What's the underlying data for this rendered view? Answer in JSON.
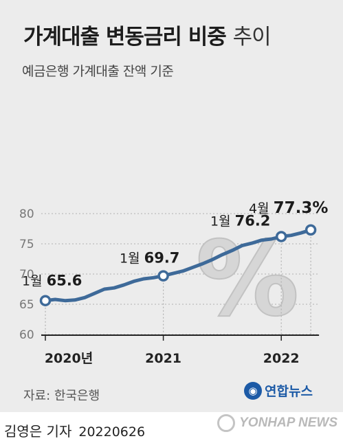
{
  "title_bold": "가계대출 변동금리 비중",
  "title_light": "추이",
  "subtitle": "예금은행 가계대출 잔액 기준",
  "source": "자료: 한국은행",
  "logo_text": "연합뉴스",
  "byline": "김영은 기자",
  "byline_date": "20220626",
  "watermark": "YONHAP NEWS",
  "colors": {
    "line": "#3e6a99",
    "background": "#ececec",
    "grid": "#bdbdbd"
  },
  "chart_data": {
    "type": "line",
    "title": "가계대출 변동금리 비중 추이",
    "subtitle": "예금은행 가계대출 잔액 기준",
    "ylim": [
      60,
      80
    ],
    "yticks": [
      60,
      65,
      70,
      75,
      80
    ],
    "xticks": [
      {
        "x": 0,
        "label": "2020년"
      },
      {
        "x": 12,
        "label": "2021"
      },
      {
        "x": 24,
        "label": "2022"
      }
    ],
    "grid": "dotted",
    "series": [
      {
        "values": [
          65.6,
          65.8,
          65.6,
          65.7,
          66.1,
          66.8,
          67.5,
          67.7,
          68.2,
          68.8,
          69.2,
          69.4,
          69.7,
          70.1,
          70.5,
          71.1,
          71.7,
          72.4,
          73.2,
          73.9,
          74.7,
          75.1,
          75.6,
          75.8,
          76.2,
          76.4,
          76.8,
          77.3
        ]
      }
    ],
    "annotations": [
      {
        "index": 0,
        "month": "1월",
        "value": "65.6"
      },
      {
        "index": 12,
        "month": "1월",
        "value": "69.7"
      },
      {
        "index": 24,
        "month": "1월",
        "value": "76.2"
      },
      {
        "index": 27,
        "month": "4월",
        "value": "77.3%"
      }
    ],
    "decoration": "%"
  }
}
